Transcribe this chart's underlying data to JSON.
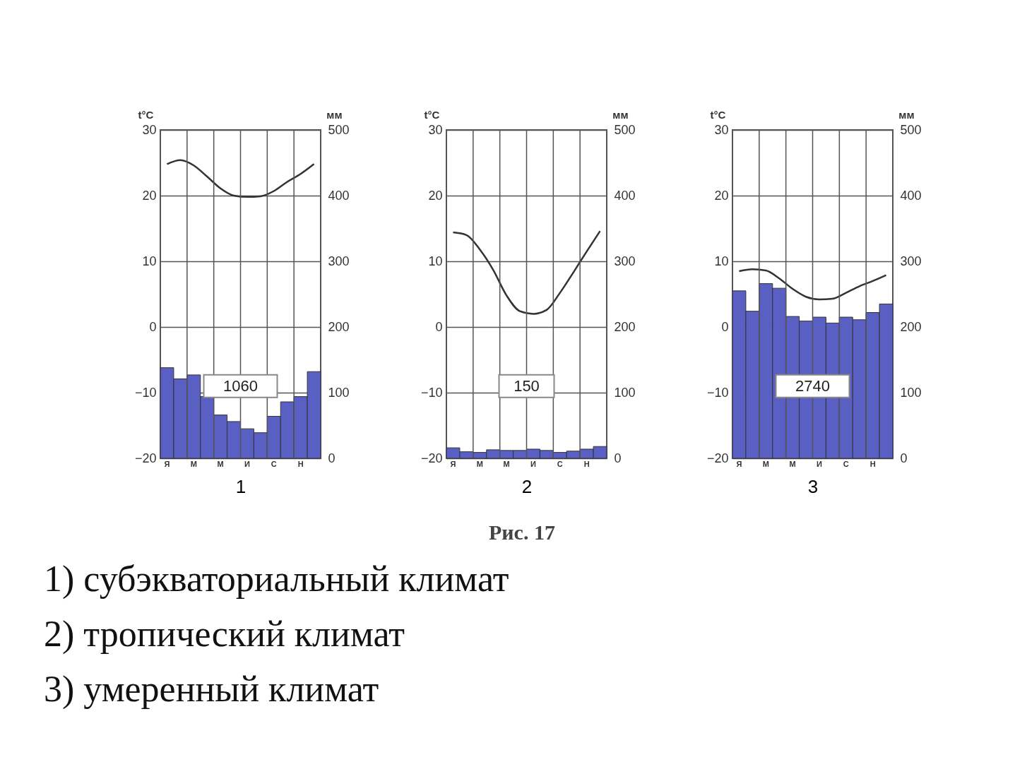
{
  "chart_data": [
    {
      "type": "bar",
      "categories": [
        "Я",
        null,
        "М",
        null,
        "М",
        null,
        "И",
        null,
        "С",
        null,
        "Н",
        null
      ],
      "xlabel": "1",
      "ylabel": "t°C",
      "y2label": "мм",
      "ylim": [
        -20,
        30
      ],
      "yticks": [
        -20,
        -10,
        0,
        10,
        20,
        30
      ],
      "y2lim": [
        0,
        500
      ],
      "y2ticks": [
        0,
        100,
        200,
        300,
        400,
        500
      ],
      "grid": true,
      "annotations": [
        "1060"
      ],
      "series": [
        {
          "type": "bar",
          "axis": "y2",
          "color": "#5a5fc4",
          "values": [
            138,
            121,
            127,
            94,
            66,
            56,
            45,
            39,
            64,
            86,
            94,
            132
          ]
        },
        {
          "type": "line",
          "color": "#333333",
          "values": [
            24.8,
            25.4,
            24.6,
            22.9,
            21.1,
            20,
            19.8,
            19.9,
            20.7,
            22.1,
            23.3,
            24.8
          ]
        }
      ]
    },
    {
      "type": "bar",
      "categories": [
        "Я",
        null,
        "М",
        null,
        "М",
        null,
        "И",
        null,
        "С",
        null,
        "Н",
        null
      ],
      "xlabel": "2",
      "ylabel": "t°C",
      "y2label": "мм",
      "ylim": [
        -20,
        30
      ],
      "yticks": [
        -20,
        -10,
        0,
        10,
        20,
        30
      ],
      "y2lim": [
        0,
        500
      ],
      "y2ticks": [
        0,
        100,
        200,
        300,
        400,
        500
      ],
      "grid": true,
      "annotations": [
        "150"
      ],
      "series": [
        {
          "type": "bar",
          "axis": "y2",
          "color": "#5a5fc4",
          "values": [
            16,
            10,
            9,
            13,
            12,
            12,
            14,
            12,
            9,
            11,
            14,
            18
          ]
        },
        {
          "type": "line",
          "color": "#333333",
          "values": [
            14.4,
            14,
            11.8,
            8.7,
            4.8,
            2.4,
            2,
            2.6,
            5.2,
            8.3,
            11.5,
            14.6
          ]
        }
      ]
    },
    {
      "type": "bar",
      "categories": [
        "Я",
        null,
        "М",
        null,
        "М",
        null,
        "И",
        null,
        "С",
        null,
        "Н",
        null
      ],
      "xlabel": "3",
      "ylabel": "t°C",
      "y2label": "мм",
      "ylim": [
        -20,
        30
      ],
      "yticks": [
        -20,
        -10,
        0,
        10,
        20,
        30
      ],
      "y2lim": [
        0,
        500
      ],
      "y2ticks": [
        0,
        100,
        200,
        300,
        400,
        500
      ],
      "grid": true,
      "annotations": [
        "2740"
      ],
      "series": [
        {
          "type": "bar",
          "axis": "y2",
          "color": "#5a5fc4",
          "values": [
            255,
            224,
            266,
            259,
            216,
            209,
            215,
            206,
            215,
            211,
            222,
            235
          ]
        },
        {
          "type": "line",
          "color": "#333333",
          "values": [
            8.5,
            8.8,
            8.6,
            7.4,
            5.8,
            4.6,
            4.2,
            4.3,
            5.2,
            6.2,
            7,
            7.9
          ]
        }
      ]
    },
    {
      "type": "other",
      "annotations": [
        "Рис. 17",
        "1) субэкваториальный климат",
        "2) тропический климат",
        "3) умеренный климат"
      ]
    }
  ]
}
